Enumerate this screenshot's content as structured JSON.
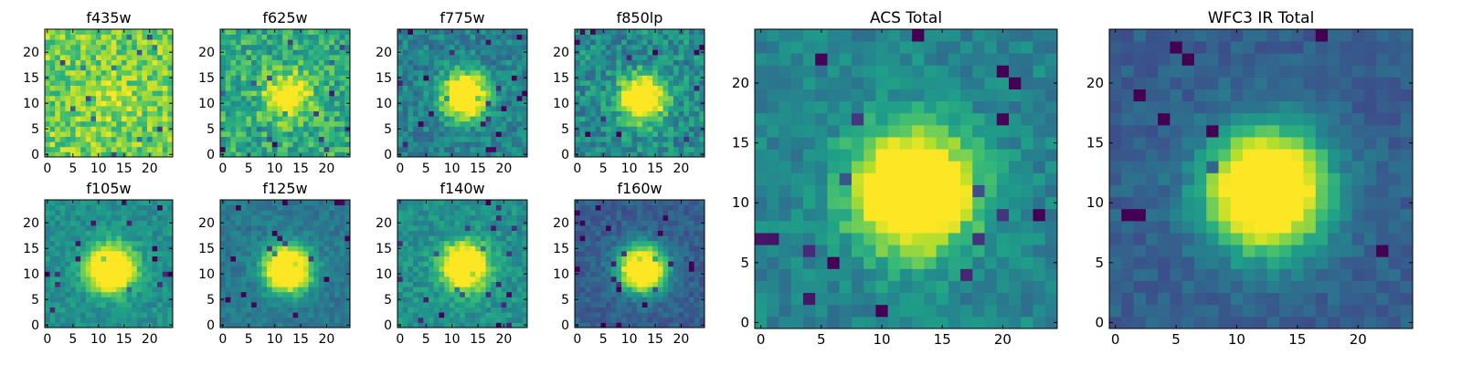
{
  "chart_data": [
    {
      "type": "heatmap",
      "title": "f435w",
      "colormap": "viridis",
      "xticks": [
        0,
        5,
        10,
        15,
        20
      ],
      "yticks": [
        0,
        5,
        10,
        15,
        20
      ],
      "xlim": [
        0,
        25
      ],
      "ylim": [
        0,
        25
      ],
      "pixels": [
        25,
        25
      ],
      "source_center": [
        13,
        11.5
      ],
      "peak": 0.1,
      "background": 0.78,
      "noise": 0.18
    },
    {
      "type": "heatmap",
      "title": "f625w",
      "colormap": "viridis",
      "xticks": [
        0,
        5,
        10,
        15,
        20
      ],
      "yticks": [
        0,
        5,
        10,
        15,
        20
      ],
      "xlim": [
        0,
        25
      ],
      "ylim": [
        0,
        25
      ],
      "pixels": [
        25,
        25
      ],
      "source_center": [
        13,
        12
      ],
      "peak": 0.45,
      "background": 0.62,
      "noise": 0.18
    },
    {
      "type": "heatmap",
      "title": "f775w",
      "colormap": "viridis",
      "xticks": [
        0,
        5,
        10,
        15,
        20
      ],
      "yticks": [
        0,
        5,
        10,
        15,
        20
      ],
      "xlim": [
        0,
        25
      ],
      "ylim": [
        0,
        25
      ],
      "pixels": [
        25,
        25
      ],
      "source_center": [
        13,
        12
      ],
      "peak": 0.85,
      "background": 0.44,
      "noise": 0.14
    },
    {
      "type": "heatmap",
      "title": "f850lp",
      "colormap": "viridis",
      "xticks": [
        0,
        5,
        10,
        15,
        20
      ],
      "yticks": [
        0,
        5,
        10,
        15,
        20
      ],
      "xlim": [
        0,
        25
      ],
      "ylim": [
        0,
        25
      ],
      "pixels": [
        25,
        25
      ],
      "source_center": [
        13,
        11.5
      ],
      "peak": 0.75,
      "background": 0.48,
      "noise": 0.16
    },
    {
      "type": "heatmap",
      "title": "f105w",
      "colormap": "viridis",
      "xticks": [
        0,
        5,
        10,
        15,
        20
      ],
      "yticks": [
        0,
        5,
        10,
        15,
        20
      ],
      "xlim": [
        0,
        25
      ],
      "ylim": [
        0,
        25
      ],
      "pixels": [
        25,
        25
      ],
      "source_center": [
        13,
        11.5
      ],
      "peak": 0.9,
      "background": 0.5,
      "noise": 0.09
    },
    {
      "type": "heatmap",
      "title": "f125w",
      "colormap": "viridis",
      "xticks": [
        0,
        5,
        10,
        15,
        20
      ],
      "yticks": [
        0,
        5,
        10,
        15,
        20
      ],
      "xlim": [
        0,
        25
      ],
      "ylim": [
        0,
        25
      ],
      "pixels": [
        25,
        25
      ],
      "source_center": [
        13,
        11.5
      ],
      "peak": 0.95,
      "background": 0.4,
      "noise": 0.08
    },
    {
      "type": "heatmap",
      "title": "f140w",
      "colormap": "viridis",
      "xticks": [
        0,
        5,
        10,
        15,
        20
      ],
      "yticks": [
        0,
        5,
        10,
        15,
        20
      ],
      "xlim": [
        0,
        25
      ],
      "ylim": [
        0,
        25
      ],
      "pixels": [
        25,
        25
      ],
      "source_center": [
        13,
        12
      ],
      "peak": 0.85,
      "background": 0.5,
      "noise": 0.1
    },
    {
      "type": "heatmap",
      "title": "f160w",
      "colormap": "viridis",
      "xticks": [
        0,
        5,
        10,
        15,
        20
      ],
      "yticks": [
        0,
        5,
        10,
        15,
        20
      ],
      "xlim": [
        0,
        25
      ],
      "ylim": [
        0,
        25
      ],
      "pixels": [
        25,
        25
      ],
      "source_center": [
        13,
        11.5
      ],
      "peak": 1.0,
      "background": 0.3,
      "noise": 0.08
    },
    {
      "type": "heatmap",
      "title": "ACS Total",
      "colormap": "viridis",
      "xticks": [
        0,
        5,
        10,
        15,
        20
      ],
      "yticks": [
        0,
        5,
        10,
        15,
        20
      ],
      "xlim": [
        0,
        25
      ],
      "ylim": [
        0,
        25
      ],
      "pixels": [
        25,
        25
      ],
      "source_center": [
        13,
        11.5
      ],
      "peak": 0.9,
      "background": 0.45,
      "noise": 0.1
    },
    {
      "type": "heatmap",
      "title": "WFC3 IR Total",
      "colormap": "viridis",
      "xticks": [
        0,
        5,
        10,
        15,
        20
      ],
      "yticks": [
        0,
        5,
        10,
        15,
        20
      ],
      "xlim": [
        0,
        25
      ],
      "ylim": [
        0,
        25
      ],
      "pixels": [
        25,
        25
      ],
      "source_center": [
        13,
        11.5
      ],
      "peak": 1.0,
      "background": 0.3,
      "noise": 0.07
    }
  ]
}
